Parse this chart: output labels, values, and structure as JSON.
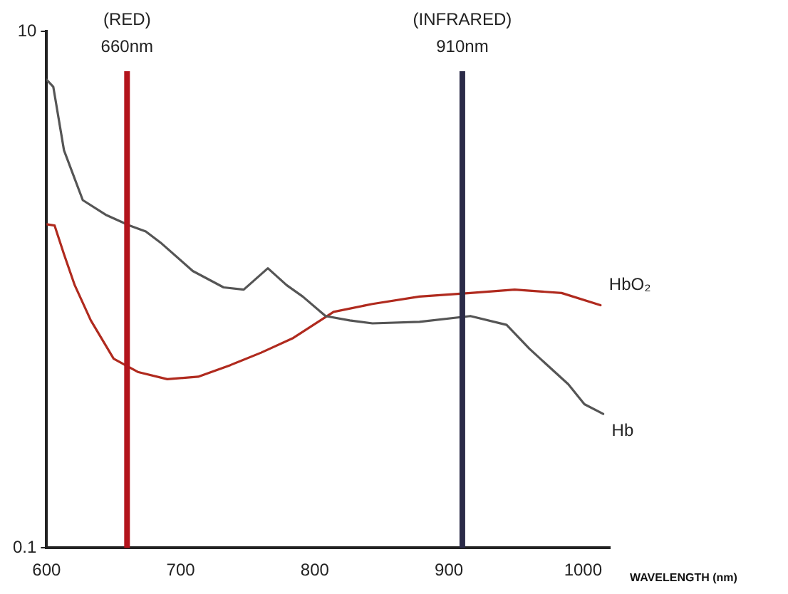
{
  "chart_data": {
    "type": "line",
    "xlabel": "WAVELENGTH (nm)",
    "xlim": [
      600,
      1020
    ],
    "xticks": [
      600,
      700,
      800,
      900,
      1000
    ],
    "ylim": [
      0.1,
      10
    ],
    "yticks": [
      10,
      0.1
    ],
    "log": "y",
    "grid": false,
    "legend": false,
    "marker": "none",
    "line_style": "solid",
    "series": [
      {
        "name": "Hb",
        "color": "#555555",
        "x": [
          600,
          605,
          613,
          627,
          644,
          662,
          674,
          685,
          709,
          732,
          747,
          765,
          779,
          791,
          808,
          826,
          843,
          878,
          916,
          943,
          960,
          989,
          1001,
          1015
        ],
        "values": [
          6.5,
          6.1,
          3.46,
          2.22,
          1.95,
          1.77,
          1.68,
          1.52,
          1.18,
          1.02,
          1.0,
          1.21,
          1.04,
          0.94,
          0.79,
          0.76,
          0.74,
          0.75,
          0.79,
          0.73,
          0.59,
          0.43,
          0.36,
          0.33
        ]
      },
      {
        "name": "HbO₂",
        "color": "#b02a1e",
        "x": [
          600,
          606,
          613,
          621,
          633,
          650,
          668,
          690,
          713,
          737,
          760,
          784,
          814,
          843,
          878,
          916,
          949,
          984,
          1013
        ],
        "values": [
          1.79,
          1.77,
          1.37,
          1.04,
          0.76,
          0.54,
          0.48,
          0.45,
          0.46,
          0.51,
          0.57,
          0.65,
          0.82,
          0.88,
          0.94,
          0.97,
          1.0,
          0.97,
          0.87
        ]
      }
    ],
    "ref_lines": [
      {
        "axis": "x",
        "value": 660,
        "label": "(RED)\n660nm",
        "color": "#b3141c"
      },
      {
        "axis": "x",
        "value": 910,
        "label": "(INFRARED)\n910nm",
        "color": "#2b2b48"
      }
    ]
  }
}
